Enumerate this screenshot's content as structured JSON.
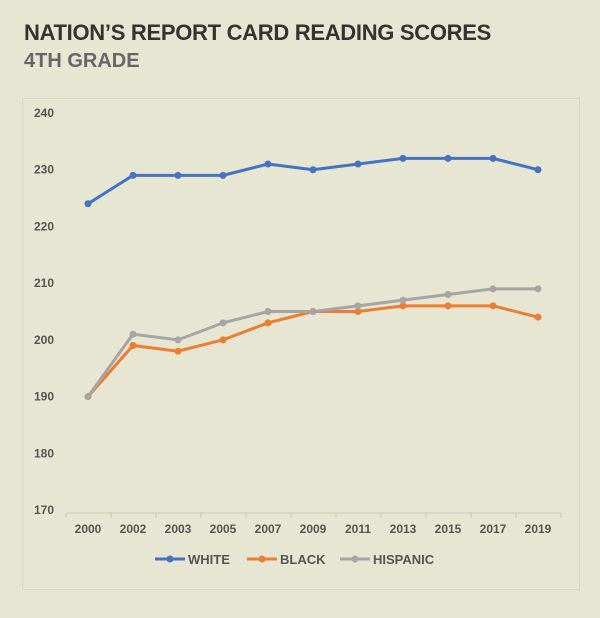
{
  "chart_data": {
    "type": "line",
    "title": "NATION’S REPORT CARD READING SCORES",
    "subtitle": "4TH GRADE",
    "xlabel": "",
    "ylabel": "",
    "categories": [
      "2000",
      "2002",
      "2003",
      "2005",
      "2007",
      "2009",
      "2011",
      "2013",
      "2015",
      "2017",
      "2019"
    ],
    "ylim": [
      170,
      240
    ],
    "yticks": [
      170,
      180,
      190,
      200,
      210,
      220,
      230,
      240
    ],
    "grid": false,
    "legend_position": "bottom",
    "series": [
      {
        "name": "WHITE",
        "color": "#4472c4",
        "values": [
          224,
          229,
          229,
          229,
          231,
          230,
          231,
          232,
          232,
          232,
          230
        ]
      },
      {
        "name": "BLACK",
        "color": "#ed7d31",
        "values": [
          190,
          199,
          198,
          200,
          203,
          205,
          205,
          206,
          206,
          206,
          204
        ]
      },
      {
        "name": "HISPANIC",
        "color": "#a5a5a5",
        "values": [
          190,
          201,
          200,
          203,
          205,
          205,
          206,
          207,
          208,
          209,
          209
        ]
      }
    ]
  }
}
